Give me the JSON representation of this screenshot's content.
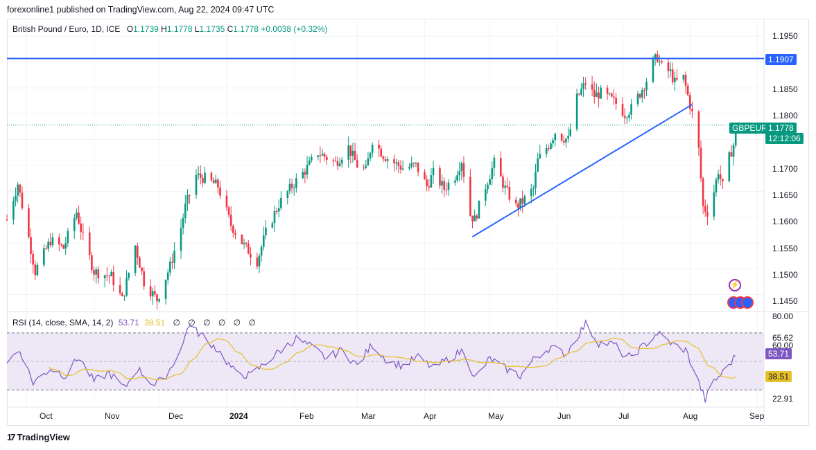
{
  "attribution": "forexonline1 published on TradingView.com, Aug 22, 2024 09:47 UTC",
  "footer": {
    "brand": "TradingView"
  },
  "legend": {
    "symbol": "British Pound / Euro, 1D, ICE",
    "open_label": "O",
    "open": "1.1739",
    "high_label": "H",
    "high": "1.1778",
    "low_label": "L",
    "low": "1.1735",
    "close_label": "C",
    "close": "1.1778",
    "change": "+0.0038 (+0.32%)"
  },
  "price_axis": [
    "1.1950",
    "1.1850",
    "1.1800",
    "1.1700",
    "1.1650",
    "1.1600",
    "1.1550",
    "1.1500",
    "1.1450"
  ],
  "hline_tag": "1.1907",
  "symbol_tag": {
    "symbol": "GBPEUR",
    "price": "1.1778",
    "countdown": "12:12:06"
  },
  "rsi_legend": {
    "label": "RSI (14, close, SMA, 14, 2)",
    "rsi_value": "53.71",
    "sma_value": "38.51",
    "extras": [
      "∅",
      "∅",
      "∅",
      "∅",
      "∅",
      "∅"
    ]
  },
  "rsi_axis": [
    "80.00",
    "65.62",
    "60.00",
    "22.91"
  ],
  "rsi_tags": {
    "rsi": "53.71",
    "sma": "38.51"
  },
  "x_axis": [
    "Oct",
    "Nov",
    "Dec",
    "2024",
    "Feb",
    "Mar",
    "Apr",
    "May",
    "Jun",
    "Jul",
    "Aug",
    "Sep"
  ],
  "colors": {
    "up": "#089981",
    "down": "#f23645",
    "trend": "#2962ff",
    "rsi": "#7e57c2",
    "sma": "#e5c029",
    "rsi_band": "#ede7f6"
  },
  "chart_data": {
    "type": "candlestick",
    "title": "British Pound / Euro, 1D, ICE",
    "x_range": [
      "2023-09-22",
      "2024-09-04"
    ],
    "y_range": [
      1.142,
      1.198
    ],
    "horizontal_level": 1.1907,
    "trendlines": [
      {
        "from": [
          "2024-04-23",
          1.1562
        ],
        "to": [
          "2024-08-02",
          1.1818
        ]
      }
    ],
    "close_anchors": [
      [
        "2023-09-22",
        1.1595
      ],
      [
        "2023-09-27",
        1.1665
      ],
      [
        "2023-10-02",
        1.156
      ],
      [
        "2023-10-05",
        1.1495
      ],
      [
        "2023-10-12",
        1.1555
      ],
      [
        "2023-10-18",
        1.154
      ],
      [
        "2023-10-24",
        1.161
      ],
      [
        "2023-10-27",
        1.156
      ],
      [
        "2023-11-01",
        1.1495
      ],
      [
        "2023-11-09",
        1.1485
      ],
      [
        "2023-11-14",
        1.144
      ],
      [
        "2023-11-20",
        1.1545
      ],
      [
        "2023-11-24",
        1.1475
      ],
      [
        "2023-11-30",
        1.144
      ],
      [
        "2023-12-06",
        1.1505
      ],
      [
        "2023-12-11",
        1.158
      ],
      [
        "2023-12-13",
        1.162
      ],
      [
        "2023-12-18",
        1.168
      ],
      [
        "2023-12-22",
        1.1675
      ],
      [
        "2023-12-28",
        1.166
      ],
      [
        "2024-01-03",
        1.1585
      ],
      [
        "2024-01-09",
        1.1545
      ],
      [
        "2024-01-15",
        1.1515
      ],
      [
        "2024-01-19",
        1.157
      ],
      [
        "2024-01-25",
        1.1625
      ],
      [
        "2024-01-31",
        1.166
      ],
      [
        "2024-02-06",
        1.169
      ],
      [
        "2024-02-12",
        1.1725
      ],
      [
        "2024-02-20",
        1.1705
      ],
      [
        "2024-02-26",
        1.1735
      ],
      [
        "2024-03-01",
        1.17
      ],
      [
        "2024-03-05",
        1.169
      ],
      [
        "2024-03-08",
        1.175
      ],
      [
        "2024-03-13",
        1.172
      ],
      [
        "2024-03-18",
        1.1705
      ],
      [
        "2024-03-22",
        1.1695
      ],
      [
        "2024-03-28",
        1.17
      ],
      [
        "2024-04-02",
        1.166
      ],
      [
        "2024-04-05",
        1.1685
      ],
      [
        "2024-04-10",
        1.1655
      ],
      [
        "2024-04-15",
        1.168
      ],
      [
        "2024-04-18",
        1.171
      ],
      [
        "2024-04-22",
        1.1605
      ],
      [
        "2024-04-24",
        1.1595
      ],
      [
        "2024-04-29",
        1.166
      ],
      [
        "2024-05-03",
        1.1705
      ],
      [
        "2024-05-08",
        1.1655
      ],
      [
        "2024-05-13",
        1.162
      ],
      [
        "2024-05-16",
        1.163
      ],
      [
        "2024-05-21",
        1.1655
      ],
      [
        "2024-05-23",
        1.171
      ],
      [
        "2024-05-28",
        1.174
      ],
      [
        "2024-05-31",
        1.1765
      ],
      [
        "2024-06-03",
        1.1755
      ],
      [
        "2024-06-06",
        1.175
      ],
      [
        "2024-06-10",
        1.183
      ],
      [
        "2024-06-14",
        1.186
      ],
      [
        "2024-06-18",
        1.1835
      ],
      [
        "2024-06-21",
        1.184
      ],
      [
        "2024-06-25",
        1.183
      ],
      [
        "2024-06-28",
        1.182
      ],
      [
        "2024-07-02",
        1.18
      ],
      [
        "2024-07-05",
        1.181
      ],
      [
        "2024-07-09",
        1.184
      ],
      [
        "2024-07-12",
        1.1865
      ],
      [
        "2024-07-15",
        1.19
      ],
      [
        "2024-07-17",
        1.191
      ],
      [
        "2024-07-19",
        1.189
      ],
      [
        "2024-07-23",
        1.188
      ],
      [
        "2024-07-25",
        1.186
      ],
      [
        "2024-07-29",
        1.187
      ],
      [
        "2024-07-31",
        1.1835
      ],
      [
        "2024-08-02",
        1.18
      ],
      [
        "2024-08-05",
        1.173
      ],
      [
        "2024-08-07",
        1.162
      ],
      [
        "2024-08-09",
        1.161
      ],
      [
        "2024-08-12",
        1.165
      ],
      [
        "2024-08-14",
        1.169
      ],
      [
        "2024-08-16",
        1.166
      ],
      [
        "2024-08-19",
        1.1715
      ],
      [
        "2024-08-21",
        1.174
      ],
      [
        "2024-08-22",
        1.1778
      ]
    ],
    "rsi": {
      "period": 14,
      "range": [
        18,
        84
      ],
      "levels": [
        70,
        30
      ],
      "rsi_anchors": [
        [
          "2023-09-22",
          50
        ],
        [
          "2023-09-28",
          58
        ],
        [
          "2023-10-04",
          35
        ],
        [
          "2023-10-12",
          45
        ],
        [
          "2023-10-19",
          40
        ],
        [
          "2023-10-25",
          53
        ],
        [
          "2023-11-01",
          36
        ],
        [
          "2023-11-08",
          42
        ],
        [
          "2023-11-15",
          31
        ],
        [
          "2023-11-21",
          45
        ],
        [
          "2023-11-29",
          33
        ],
        [
          "2023-12-05",
          42
        ],
        [
          "2023-12-12",
          62
        ],
        [
          "2023-12-14",
          75
        ],
        [
          "2023-12-21",
          68
        ],
        [
          "2023-12-28",
          58
        ],
        [
          "2024-01-05",
          42
        ],
        [
          "2024-01-12",
          40
        ],
        [
          "2024-01-18",
          48
        ],
        [
          "2024-01-26",
          58
        ],
        [
          "2024-02-02",
          66
        ],
        [
          "2024-02-09",
          60
        ],
        [
          "2024-02-16",
          52
        ],
        [
          "2024-02-23",
          58
        ],
        [
          "2024-03-01",
          47
        ],
        [
          "2024-03-08",
          62
        ],
        [
          "2024-03-15",
          50
        ],
        [
          "2024-03-22",
          47
        ],
        [
          "2024-03-29",
          53
        ],
        [
          "2024-04-05",
          45
        ],
        [
          "2024-04-12",
          52
        ],
        [
          "2024-04-19",
          58
        ],
        [
          "2024-04-24",
          38
        ],
        [
          "2024-05-01",
          52
        ],
        [
          "2024-05-08",
          45
        ],
        [
          "2024-05-15",
          40
        ],
        [
          "2024-05-22",
          53
        ],
        [
          "2024-05-29",
          60
        ],
        [
          "2024-06-05",
          55
        ],
        [
          "2024-06-12",
          72
        ],
        [
          "2024-06-14",
          76
        ],
        [
          "2024-06-20",
          63
        ],
        [
          "2024-06-27",
          62
        ],
        [
          "2024-07-03",
          52
        ],
        [
          "2024-07-10",
          60
        ],
        [
          "2024-07-17",
          70
        ],
        [
          "2024-07-24",
          62
        ],
        [
          "2024-07-30",
          58
        ],
        [
          "2024-08-05",
          35
        ],
        [
          "2024-08-08",
          23
        ],
        [
          "2024-08-12",
          36
        ],
        [
          "2024-08-16",
          42
        ],
        [
          "2024-08-19",
          48
        ],
        [
          "2024-08-22",
          53.71
        ]
      ],
      "current_rsi": 53.71,
      "current_sma": 38.51
    }
  }
}
